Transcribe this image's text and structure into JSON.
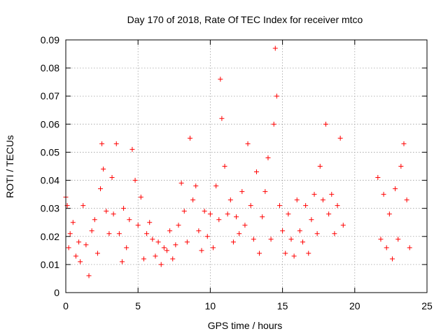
{
  "chart_data": {
    "type": "scatter",
    "title": "Day 170 of 2018, Rate Of TEC Index for receiver mtco",
    "xlabel": "GPS time / hours",
    "ylabel": "ROTI / TECUs",
    "xlim": [
      0,
      25
    ],
    "ylim": [
      0,
      0.09
    ],
    "xticks": [
      0,
      5,
      10,
      15,
      20,
      25
    ],
    "xtick_labels": [
      "0",
      "5",
      "10",
      "15",
      "20",
      "25"
    ],
    "yticks": [
      0,
      0.01,
      0.02,
      0.03,
      0.04,
      0.05,
      0.06,
      0.07,
      0.08,
      0.09
    ],
    "ytick_labels": [
      "0",
      "0.01",
      "0.02",
      "0.03",
      "0.04",
      "0.05",
      "0.06",
      "0.07",
      "0.08",
      "0.09"
    ],
    "grid": true,
    "marker": "+",
    "marker_color": "#ff0000",
    "series": [
      {
        "name": "ROTI",
        "x": [
          0.0,
          0.1,
          0.2,
          0.3,
          0.5,
          0.7,
          0.9,
          1.0,
          1.2,
          1.4,
          1.6,
          1.8,
          2.0,
          2.2,
          2.4,
          2.5,
          2.6,
          2.8,
          3.0,
          3.2,
          3.3,
          3.5,
          3.7,
          3.9,
          4.0,
          4.2,
          4.4,
          4.6,
          4.8,
          5.0,
          5.2,
          5.4,
          5.6,
          5.8,
          6.0,
          6.2,
          6.4,
          6.6,
          6.8,
          7.0,
          7.2,
          7.4,
          7.6,
          7.8,
          8.0,
          8.2,
          8.4,
          8.6,
          8.8,
          9.0,
          9.2,
          9.4,
          9.6,
          9.8,
          10.0,
          10.2,
          10.4,
          10.6,
          10.7,
          10.8,
          11.0,
          11.2,
          11.4,
          11.6,
          11.8,
          12.0,
          12.2,
          12.4,
          12.6,
          12.8,
          13.0,
          13.2,
          13.4,
          13.6,
          13.8,
          14.0,
          14.2,
          14.4,
          14.5,
          14.6,
          14.8,
          15.0,
          15.2,
          15.4,
          15.6,
          15.8,
          16.0,
          16.2,
          16.4,
          16.6,
          16.8,
          17.0,
          17.2,
          17.4,
          17.6,
          17.8,
          18.0,
          18.2,
          18.4,
          18.6,
          18.8,
          19.0,
          19.2,
          21.6,
          21.8,
          22.0,
          22.2,
          22.4,
          22.6,
          22.8,
          23.0,
          23.2,
          23.4,
          23.6,
          23.8
        ],
        "y": [
          0.034,
          0.031,
          0.016,
          0.021,
          0.025,
          0.013,
          0.018,
          0.011,
          0.031,
          0.017,
          0.006,
          0.022,
          0.026,
          0.014,
          0.037,
          0.053,
          0.044,
          0.029,
          0.021,
          0.041,
          0.028,
          0.053,
          0.021,
          0.011,
          0.03,
          0.016,
          0.026,
          0.051,
          0.04,
          0.024,
          0.034,
          0.012,
          0.021,
          0.025,
          0.019,
          0.013,
          0.018,
          0.01,
          0.016,
          0.015,
          0.022,
          0.012,
          0.017,
          0.024,
          0.039,
          0.029,
          0.018,
          0.055,
          0.033,
          0.038,
          0.022,
          0.015,
          0.029,
          0.02,
          0.028,
          0.016,
          0.038,
          0.026,
          0.076,
          0.062,
          0.045,
          0.028,
          0.033,
          0.018,
          0.027,
          0.021,
          0.036,
          0.024,
          0.053,
          0.031,
          0.019,
          0.043,
          0.014,
          0.027,
          0.036,
          0.048,
          0.019,
          0.06,
          0.087,
          0.07,
          0.031,
          0.022,
          0.014,
          0.028,
          0.019,
          0.013,
          0.033,
          0.022,
          0.018,
          0.031,
          0.014,
          0.026,
          0.035,
          0.021,
          0.045,
          0.033,
          0.06,
          0.028,
          0.035,
          0.021,
          0.031,
          0.055,
          0.024,
          0.041,
          0.019,
          0.035,
          0.016,
          0.028,
          0.012,
          0.037,
          0.019,
          0.045,
          0.053,
          0.033,
          0.016
        ]
      }
    ]
  }
}
